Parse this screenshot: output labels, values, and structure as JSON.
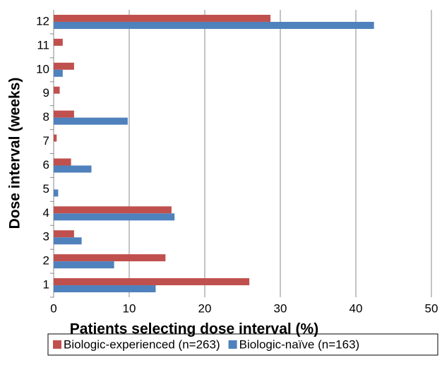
{
  "chart_data": {
    "type": "bar",
    "orientation": "horizontal",
    "x_label": "Patients selecting dose interval (%)",
    "y_label": "Dose interval (weeks)",
    "categories": [
      "1",
      "2",
      "3",
      "4",
      "5",
      "6",
      "7",
      "8",
      "9",
      "10",
      "11",
      "12"
    ],
    "series": [
      {
        "name": "Biologic-experienced (n=263)",
        "color": "#c0504d",
        "values": [
          25.9,
          14.8,
          2.7,
          15.6,
          null,
          2.3,
          0.4,
          2.7,
          0.8,
          2.7,
          1.2,
          28.7
        ]
      },
      {
        "name": "Biologic-naïve (n=163)",
        "color": "#4f81bd",
        "values": [
          13.5,
          8.0,
          3.7,
          16.0,
          0.6,
          5.0,
          null,
          9.8,
          null,
          1.2,
          null,
          42.4
        ]
      }
    ],
    "xlim": [
      0,
      50
    ],
    "xticks": [
      0,
      10,
      20,
      30,
      40,
      50
    ],
    "grid": true,
    "legend": "bottom"
  }
}
